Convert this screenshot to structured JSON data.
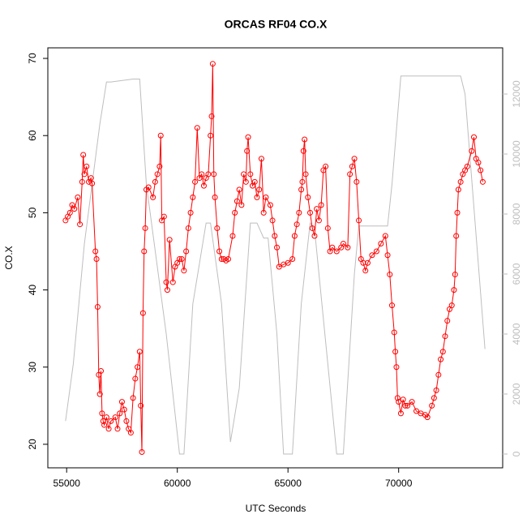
{
  "chart_data": {
    "type": "line",
    "title": "ORCAS RF04 CO.X",
    "xlabel": "UTC Seconds",
    "ylabel": "CO.X",
    "xlim": [
      54150,
      74700
    ],
    "xticks": [
      55000,
      60000,
      65000,
      70000
    ],
    "ylim": [
      16.95,
      71.37
    ],
    "yticks": [
      20,
      30,
      40,
      50,
      60,
      70
    ],
    "y2lim": [
      -460,
      13540
    ],
    "y2ticks": [
      0,
      2000,
      4000,
      6000,
      8000,
      10000,
      12000
    ],
    "series": [
      {
        "color": "#ff0000",
        "markers": true,
        "x": [
          54950,
          55050,
          55150,
          55250,
          55350,
          55500,
          55600,
          55700,
          55750,
          55800,
          55900,
          56000,
          56100,
          56150,
          56300,
          56350,
          56400,
          56450,
          56500,
          56550,
          56600,
          56650,
          56700,
          56800,
          56900,
          57000,
          57200,
          57300,
          57400,
          57500,
          57600,
          57700,
          57800,
          57900,
          58000,
          58100,
          58200,
          58300,
          58350,
          58400,
          58450,
          58500,
          58550,
          58600,
          58700,
          58900,
          59000,
          59100,
          59200,
          59250,
          59300,
          59400,
          59500,
          59550,
          59650,
          59800,
          59900,
          60000,
          60100,
          60200,
          60300,
          60400,
          60500,
          60600,
          60700,
          60800,
          60900,
          61000,
          61100,
          61200,
          61300,
          61400,
          61500,
          61550,
          61600,
          61650,
          61700,
          61800,
          61900,
          62000,
          62100,
          62200,
          62300,
          62500,
          62600,
          62700,
          62800,
          62900,
          63000,
          63100,
          63150,
          63200,
          63300,
          63400,
          63500,
          63600,
          63700,
          63800,
          63900,
          64000,
          64200,
          64300,
          64400,
          64500,
          64600,
          64800,
          65000,
          65200,
          65300,
          65400,
          65500,
          65600,
          65650,
          65700,
          65750,
          65800,
          65900,
          66000,
          66100,
          66200,
          66300,
          66400,
          66500,
          66600,
          66700,
          66800,
          66900,
          67000,
          67200,
          67400,
          67500,
          67700,
          67800,
          67900,
          68000,
          68100,
          68200,
          68300,
          68400,
          68500,
          68600,
          68800,
          69000,
          69200,
          69400,
          69500,
          69600,
          69700,
          69800,
          69850,
          69900,
          69950,
          70000,
          70100,
          70200,
          70300,
          70400,
          70600,
          70800,
          71000,
          71200,
          71300,
          71500,
          71600,
          71700,
          71800,
          71900,
          72000,
          72100,
          72200,
          72300,
          72400,
          72500,
          72550,
          72600,
          72650,
          72700,
          72800,
          72900,
          73000,
          73100,
          73300,
          73400,
          73500,
          73600,
          73700,
          73800
        ],
        "values": [
          49,
          49.5,
          50,
          51,
          50.5,
          52,
          48.5,
          54,
          57.5,
          55,
          56,
          54,
          54.5,
          53.8,
          45,
          44,
          37.8,
          29,
          26.5,
          29.5,
          24,
          23,
          22.5,
          23.5,
          22,
          23,
          23.5,
          22,
          24,
          25.5,
          24.5,
          23,
          22,
          21.5,
          26,
          28.5,
          30,
          32,
          25,
          19,
          37,
          45,
          48,
          53,
          53.3,
          52,
          54,
          55,
          56,
          60,
          49,
          49.5,
          41,
          40,
          46.5,
          41,
          43,
          43.5,
          44,
          44,
          42.5,
          45,
          48,
          50,
          52,
          54,
          61,
          54.5,
          55,
          53.5,
          54.5,
          55,
          60,
          62.5,
          69.3,
          55,
          52,
          48,
          45,
          44,
          44,
          43.8,
          44,
          47,
          50,
          51.5,
          53,
          51,
          55,
          54,
          58,
          59.8,
          55,
          53.5,
          54,
          52,
          53,
          57,
          50,
          52,
          51,
          49,
          47,
          45.5,
          43,
          43.3,
          43.5,
          44,
          47,
          48.5,
          50,
          53,
          54,
          58,
          59.5,
          55,
          52,
          50,
          48,
          47,
          50.5,
          49,
          51,
          55.5,
          56,
          48,
          45,
          45.5,
          45,
          45.5,
          46,
          45.5,
          55,
          56,
          57,
          54,
          49,
          44,
          43.5,
          42.5,
          43.5,
          44.5,
          45,
          46,
          47,
          44.5,
          42,
          38,
          34.5,
          32,
          30,
          26,
          25.5,
          24,
          25.8,
          25,
          25,
          25.5,
          24.3,
          24,
          23.8,
          23.5,
          25,
          26,
          27,
          29,
          31,
          32,
          34,
          36,
          37.5,
          38,
          40,
          42,
          47,
          50,
          53,
          54,
          55,
          55.5,
          56,
          58,
          59.8,
          57,
          56.5,
          55.5,
          54
        ]
      },
      {
        "color": "#bebebe",
        "axis": "y2",
        "x": [
          54950,
          55300,
          55800,
          56500,
          56800,
          57000,
          58000,
          58300,
          58600,
          59500,
          60100,
          60300,
          60700,
          61300,
          61500,
          62000,
          62400,
          62800,
          63300,
          63600,
          63900,
          64100,
          64500,
          64800,
          65200,
          65600,
          66000,
          66200,
          66800,
          67200,
          67500,
          68000,
          68200,
          69500,
          69700,
          70100,
          70500,
          72800,
          73000,
          73900
        ],
        "values": [
          1100,
          3000,
          7000,
          11000,
          12400,
          12400,
          12500,
          12500,
          9000,
          4000,
          0,
          0,
          5000,
          7700,
          7700,
          5000,
          400,
          2200,
          7700,
          7700,
          7200,
          7200,
          4000,
          0,
          0,
          5000,
          7700,
          7500,
          3000,
          0,
          0,
          6000,
          7600,
          7600,
          9000,
          12600,
          12600,
          12600,
          12000,
          3500
        ]
      }
    ]
  }
}
